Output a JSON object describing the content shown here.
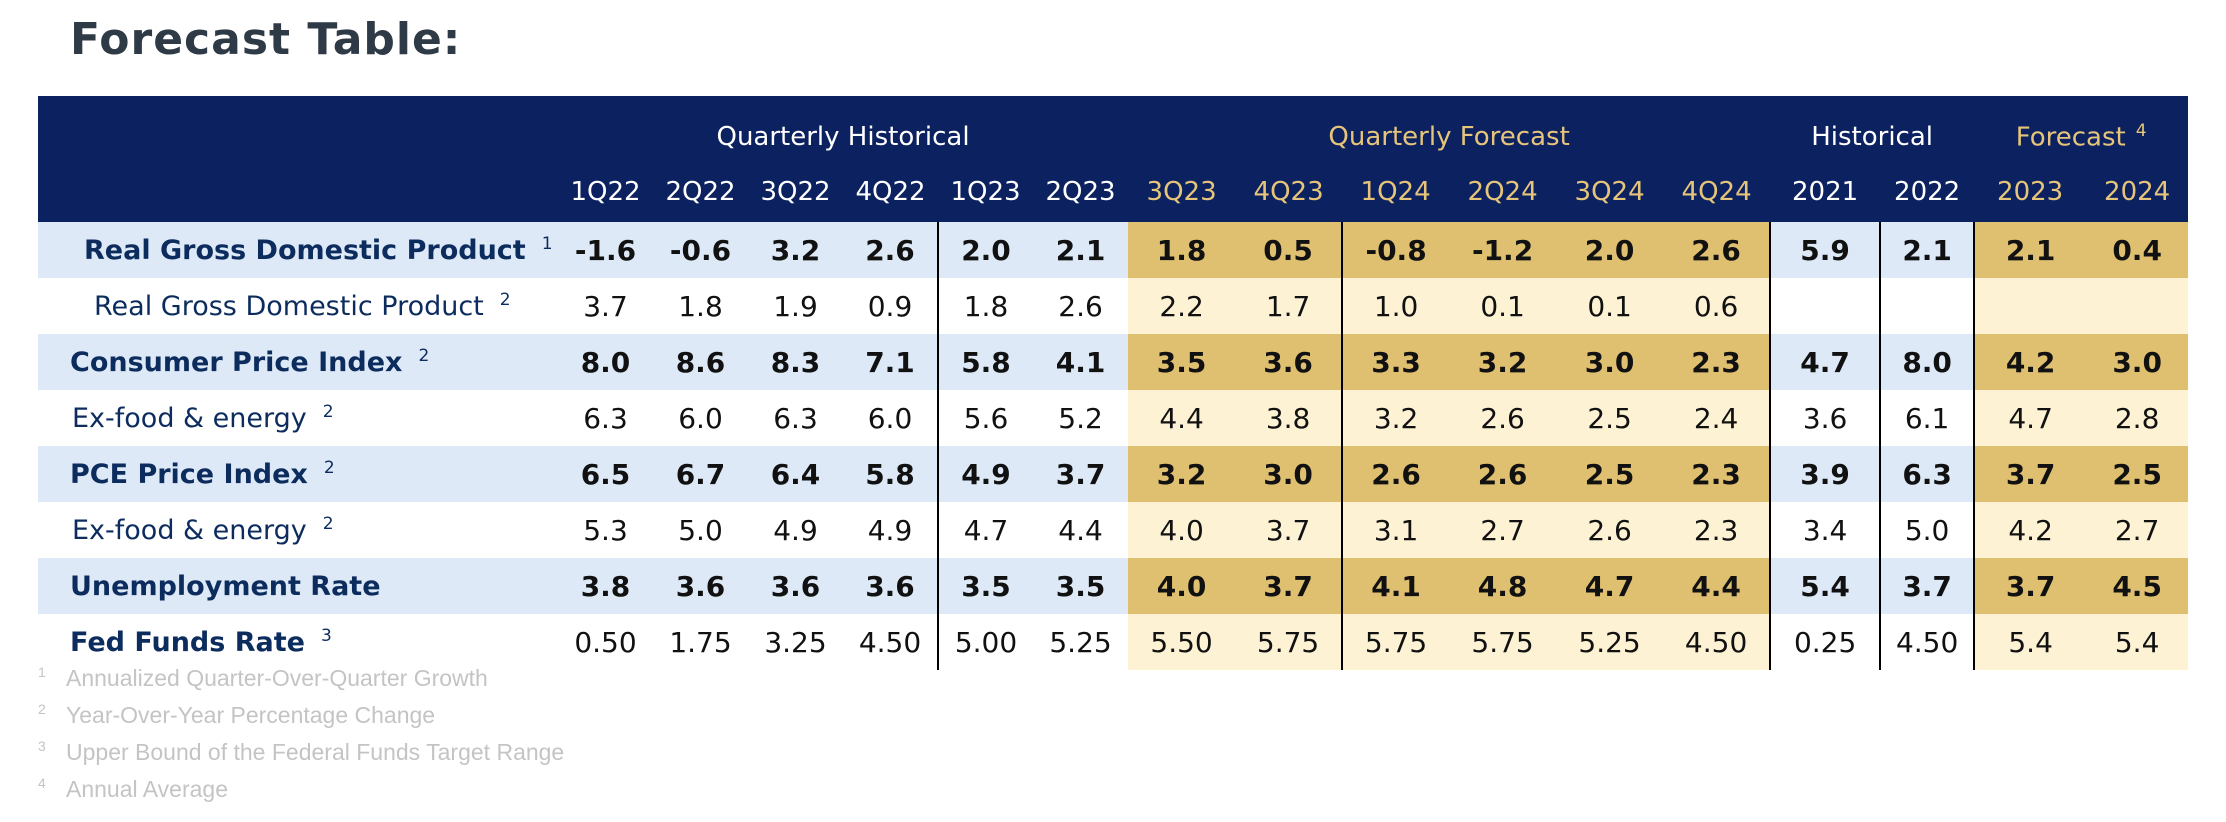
{
  "title": "Forecast Table:",
  "groups": {
    "quarterly_historical": "Quarterly Historical",
    "quarterly_forecast": "Quarterly Forecast",
    "historical": "Historical",
    "forecast": "Forecast",
    "forecast_note": "4"
  },
  "columns": [
    "1Q22",
    "2Q22",
    "3Q22",
    "4Q22",
    "1Q23",
    "2Q23",
    "3Q23",
    "4Q23",
    "1Q24",
    "2Q24",
    "3Q24",
    "4Q24",
    "2021",
    "2022",
    "2023",
    "2024"
  ],
  "rows": [
    {
      "label": "Real Gross Domestic Product",
      "note": "1",
      "bold": true,
      "indent": "ind1",
      "values": [
        "-1.6",
        "-0.6",
        "3.2",
        "2.6",
        "2.0",
        "2.1",
        "1.8",
        "0.5",
        "-0.8",
        "-1.2",
        "2.0",
        "2.6",
        "5.9",
        "2.1",
        "2.1",
        "0.4"
      ]
    },
    {
      "label": "Real Gross Domestic Product",
      "note": "2",
      "bold": false,
      "indent": "ind2",
      "values": [
        "3.7",
        "1.8",
        "1.9",
        "0.9",
        "1.8",
        "2.6",
        "2.2",
        "1.7",
        "1.0",
        "0.1",
        "0.1",
        "0.6",
        "",
        "",
        "",
        ""
      ]
    },
    {
      "label": "Consumer Price Index",
      "note": "2",
      "bold": true,
      "indent": "ind0",
      "values": [
        "8.0",
        "8.6",
        "8.3",
        "7.1",
        "5.8",
        "4.1",
        "3.5",
        "3.6",
        "3.3",
        "3.2",
        "3.0",
        "2.3",
        "4.7",
        "8.0",
        "4.2",
        "3.0"
      ]
    },
    {
      "label": "Ex-food & energy",
      "note": "2",
      "bold": false,
      "indent": "ind3",
      "values": [
        "6.3",
        "6.0",
        "6.3",
        "6.0",
        "5.6",
        "5.2",
        "4.4",
        "3.8",
        "3.2",
        "2.6",
        "2.5",
        "2.4",
        "3.6",
        "6.1",
        "4.7",
        "2.8"
      ]
    },
    {
      "label": "PCE Price Index",
      "note": "2",
      "bold": true,
      "indent": "ind0",
      "values": [
        "6.5",
        "6.7",
        "6.4",
        "5.8",
        "4.9",
        "3.7",
        "3.2",
        "3.0",
        "2.6",
        "2.6",
        "2.5",
        "2.3",
        "3.9",
        "6.3",
        "3.7",
        "2.5"
      ]
    },
    {
      "label": "Ex-food & energy",
      "note": "2",
      "bold": false,
      "indent": "ind3",
      "values": [
        "5.3",
        "5.0",
        "4.9",
        "4.9",
        "4.7",
        "4.4",
        "4.0",
        "3.7",
        "3.1",
        "2.7",
        "2.6",
        "2.3",
        "3.4",
        "5.0",
        "4.2",
        "2.7"
      ]
    },
    {
      "label": "Unemployment Rate",
      "note": "",
      "bold": true,
      "indent": "ind0",
      "values": [
        "3.8",
        "3.6",
        "3.6",
        "3.6",
        "3.5",
        "3.5",
        "4.0",
        "3.7",
        "4.1",
        "4.8",
        "4.7",
        "4.4",
        "5.4",
        "3.7",
        "3.7",
        "4.5"
      ]
    },
    {
      "label": "Fed Funds Rate",
      "note": "3",
      "bold": false,
      "boldLabel": true,
      "indent": "ind0",
      "values": [
        "0.50",
        "1.75",
        "3.25",
        "4.50",
        "5.00",
        "5.25",
        "5.50",
        "5.75",
        "5.75",
        "5.75",
        "5.25",
        "4.50",
        "0.25",
        "4.50",
        "5.4",
        "5.4"
      ]
    }
  ],
  "footnotes": [
    {
      "n": "1",
      "text": "Annualized Quarter-Over-Quarter Growth"
    },
    {
      "n": "2",
      "text": "Year-Over-Year Percentage Change"
    },
    {
      "n": "3",
      "text": "Upper Bound of the Federal Funds Target Range"
    },
    {
      "n": "4",
      "text": "Annual Average"
    }
  ]
}
